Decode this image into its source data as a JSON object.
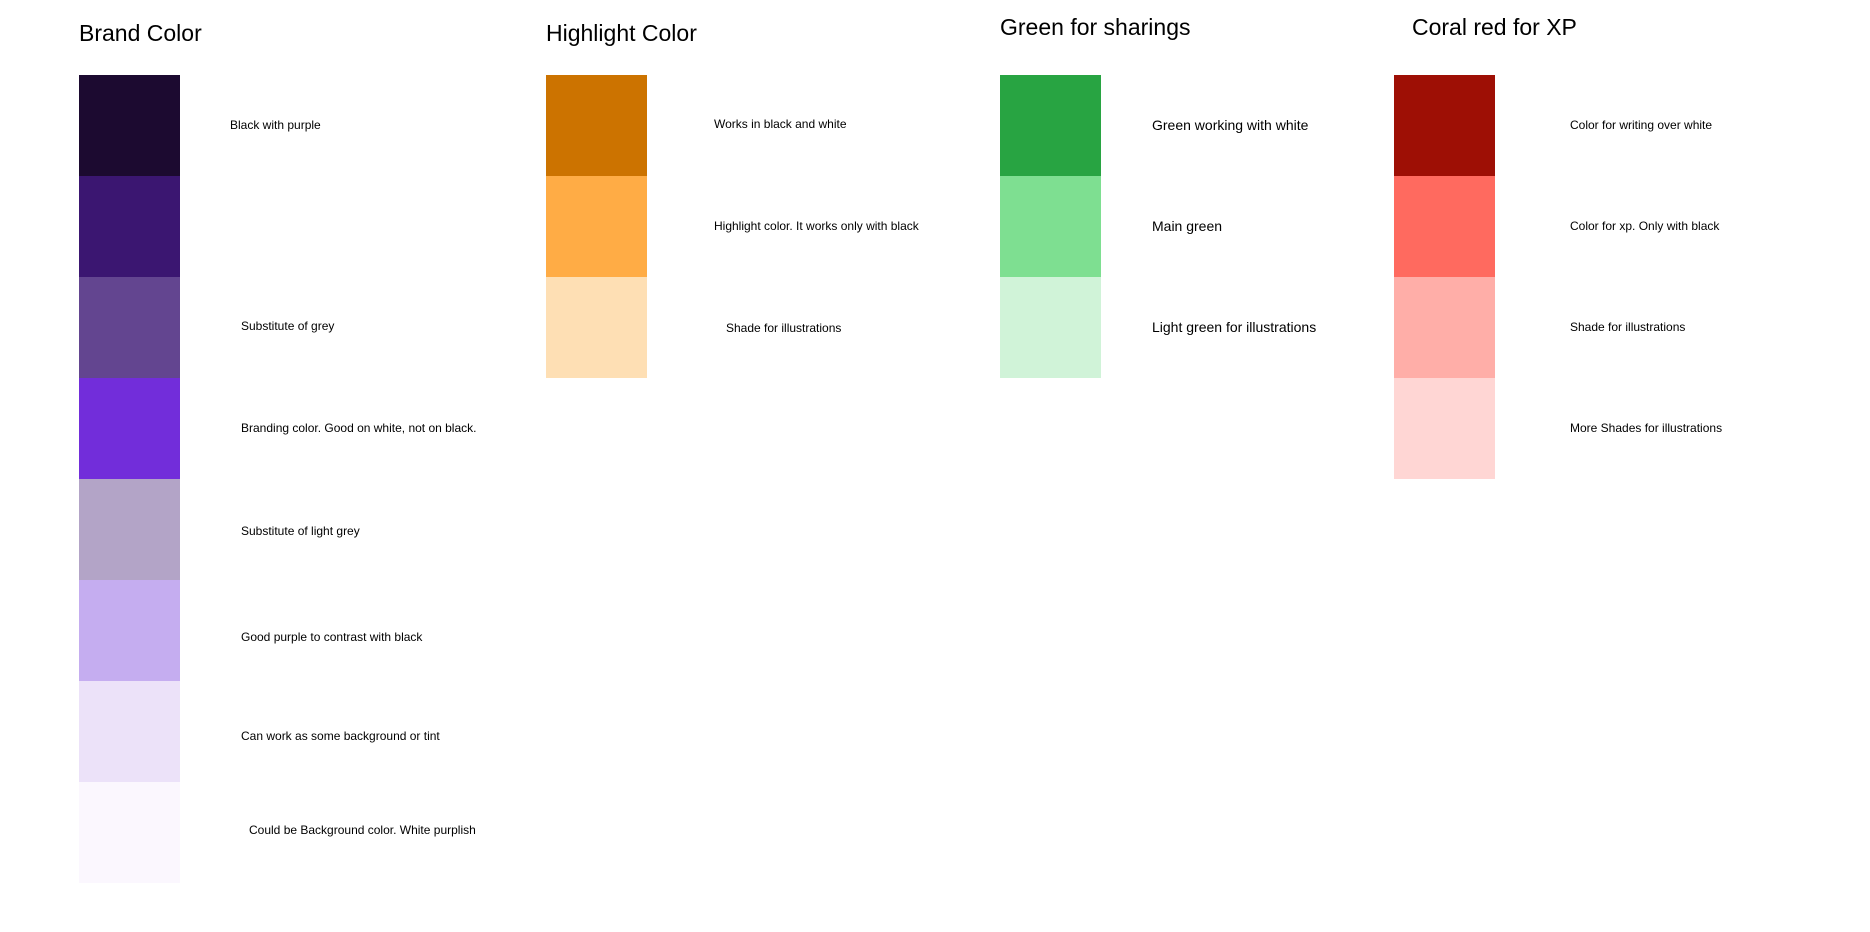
{
  "brand": {
    "title": "Brand Color",
    "swatches": [
      {
        "color": "#1C0A30",
        "label": "Black with purple"
      },
      {
        "color": "#3B1671",
        "label": ""
      },
      {
        "color": "#634590",
        "label": "Substitute of grey"
      },
      {
        "color": "#722DDA",
        "label": "Branding color. Good on white, not on black."
      },
      {
        "color": "#B3A4C7",
        "label": "Substitute of light grey"
      },
      {
        "color": "#C5ADF0",
        "label": "Good purple to contrast with black"
      },
      {
        "color": "#ECE2F9",
        "label": "Can work as some background or tint"
      },
      {
        "color": "#FBF7FE",
        "label": "Could be Background color. White purplish"
      }
    ]
  },
  "highlight": {
    "title": "Highlight Color",
    "swatches": [
      {
        "color": "#CC7300",
        "label": "Works in black and white"
      },
      {
        "color": "#FFAC45",
        "label": "Highlight color. It works only with black"
      },
      {
        "color": "#FEDFB4",
        "label": "Shade for illustrations"
      }
    ]
  },
  "green": {
    "title": "Green for sharings",
    "swatches": [
      {
        "color": "#28A442",
        "label": "Green working with white"
      },
      {
        "color": "#7EDF91",
        "label": "Main green"
      },
      {
        "color": "#D0F3D8",
        "label": "Light green for illustrations"
      }
    ]
  },
  "coral": {
    "title": "Coral red for XP",
    "swatches": [
      {
        "color": "#9E0F05",
        "label": "Color for writing over white"
      },
      {
        "color": "#FF6A5F",
        "label": "Color for xp. Only with black"
      },
      {
        "color": "#FFAEA8",
        "label": "Shade for illustrations"
      },
      {
        "color": "#FFD6D4",
        "label": "More Shades for illustrations"
      }
    ]
  }
}
